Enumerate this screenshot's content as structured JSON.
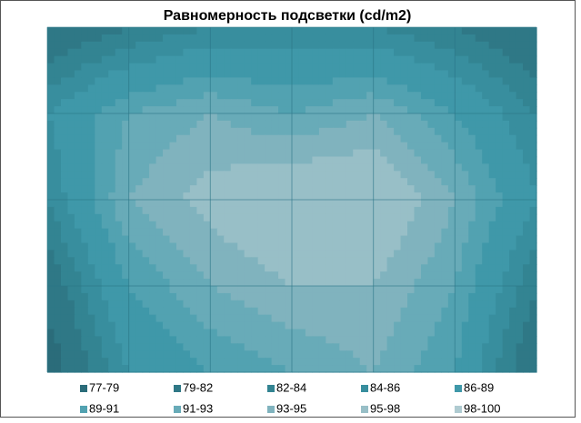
{
  "chart_data": {
    "type": "contour",
    "title": "Равномерность подсветки (cd/m2)",
    "z": [
      [
        79,
        82,
        84,
        84,
        84,
        82,
        79
      ],
      [
        86,
        91,
        93,
        91,
        93,
        89,
        84
      ],
      [
        84,
        93,
        96,
        98,
        98,
        93,
        86
      ],
      [
        80,
        89,
        93,
        95,
        95,
        91,
        82
      ],
      [
        77,
        86,
        89,
        91,
        93,
        89,
        79
      ]
    ],
    "grid": true,
    "legend": "bottom",
    "bands": [
      {
        "label": "77-79",
        "min": 77,
        "max": 79,
        "color": "#2b6c7a"
      },
      {
        "label": "79-82",
        "min": 79,
        "max": 82,
        "color": "#2f7886"
      },
      {
        "label": "82-84",
        "min": 82,
        "max": 84,
        "color": "#338492"
      },
      {
        "label": "84-86",
        "min": 84,
        "max": 86,
        "color": "#388e9e"
      },
      {
        "label": "86-89",
        "min": 86,
        "max": 89,
        "color": "#3f98a9"
      },
      {
        "label": "89-91",
        "min": 89,
        "max": 91,
        "color": "#52a2b1"
      },
      {
        "label": "91-93",
        "min": 91,
        "max": 93,
        "color": "#68abb8"
      },
      {
        "label": "93-95",
        "min": 93,
        "max": 95,
        "color": "#80b3be"
      },
      {
        "label": "95-98",
        "min": 95,
        "max": 98,
        "color": "#98bfc7"
      },
      {
        "label": "98-100",
        "min": 98,
        "max": 100,
        "color": "#afcbd1"
      }
    ]
  }
}
